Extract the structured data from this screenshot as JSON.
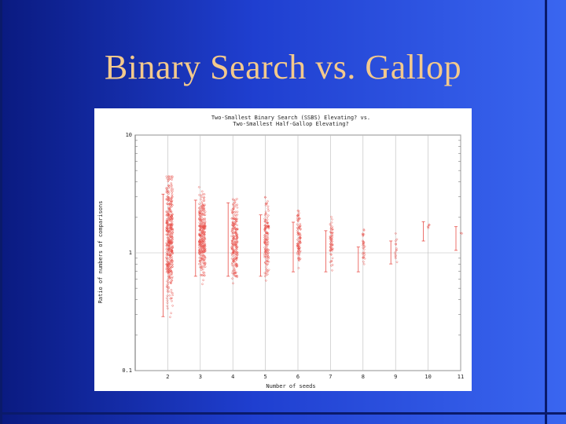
{
  "slide": {
    "title": "Binary Search vs. Gallop"
  },
  "colors": {
    "background_dark": "#0a1a80",
    "background_light": "#3a66f0",
    "title": "#f3c98c",
    "series": "#e8504a"
  },
  "chart_data": {
    "type": "scatter",
    "title_line1": "Two-Smallest Binary Search (SSBS) Elevating? vs.",
    "title_line2": "Two-Smallest Half-Gallop Elevating?",
    "xlabel": "Number of seeds",
    "ylabel": "Ratio of numbers of comparisons",
    "y_scale": "log",
    "ylim": [
      0.1,
      10
    ],
    "xlim": [
      1,
      11
    ],
    "y_ticks": [
      "10",
      "1",
      "0.1"
    ],
    "x_ticks": [
      "2",
      "3",
      "4",
      "5",
      "6",
      "7",
      "8",
      "9",
      "10",
      "11"
    ],
    "grid": true,
    "series": [
      {
        "x": [
          2,
          3,
          4,
          5,
          6,
          7,
          8,
          9,
          10,
          11
        ],
        "cluster_center": [
          1.35,
          1.35,
          1.3,
          1.35,
          1.35,
          1.25,
          1.15,
          1.1,
          1.7,
          1.5
        ],
        "cluster_spread": [
          1.4,
          1.35,
          1.3,
          1.3,
          1.3,
          1.2,
          0.9,
          0.8,
          0.2,
          0.05
        ],
        "point_count": [
          420,
          300,
          220,
          140,
          90,
          60,
          30,
          14,
          6,
          2
        ],
        "min": [
          0.25,
          0.55,
          0.55,
          0.55,
          0.6,
          0.6,
          0.6,
          0.7,
          1.6,
          1.45
        ],
        "max": [
          4.5,
          4.0,
          3.8,
          3.0,
          2.6,
          2.2,
          1.6,
          1.8,
          1.8,
          1.5
        ]
      }
    ]
  }
}
